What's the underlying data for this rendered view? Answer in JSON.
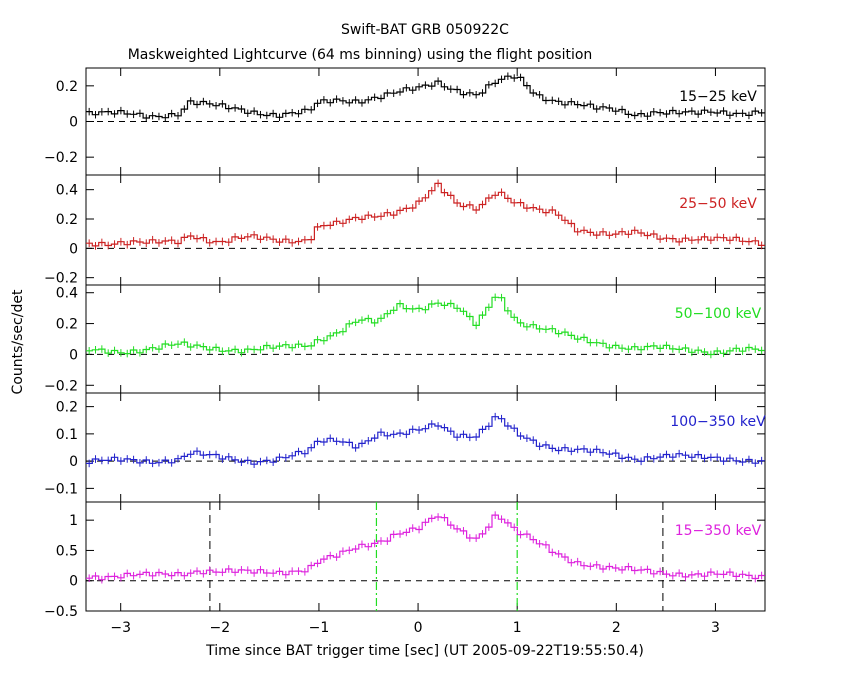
{
  "chart_data": {
    "type": "line",
    "title": "Swift-BAT GRB 050922C",
    "subtitle": "Maskweighted Lightcurve (64 ms binning) using the flight position",
    "xlabel": "Time since BAT trigger time [sec] (UT 2005-09-22T19:55:50.4)",
    "ylabel": "Counts/sec/det",
    "xlim": [
      -3.35,
      3.5
    ],
    "x_ticks": [
      -3,
      -2,
      -1,
      0,
      1,
      2,
      3
    ],
    "grid": false,
    "markers": {
      "black_dashed": [
        -2.1,
        2.47
      ],
      "green_dashdot": [
        -0.42,
        1.0
      ]
    },
    "panels": [
      {
        "name": "15-25 keV",
        "label": "15−25 keV",
        "color": "#000000",
        "ylim": [
          -0.3,
          0.3
        ],
        "y_ticks": [
          -0.2,
          0,
          0.2
        ],
        "y_tick_labels": [
          "−0.2",
          "0",
          "0.2"
        ],
        "points": [
          [
            -3.3,
            0.05
          ],
          [
            -3.0,
            0.04
          ],
          [
            -2.7,
            0.03
          ],
          [
            -2.4,
            0.05
          ],
          [
            -2.3,
            0.11
          ],
          [
            -2.0,
            0.08
          ],
          [
            -1.7,
            0.06
          ],
          [
            -1.4,
            0.04
          ],
          [
            -1.1,
            0.05
          ],
          [
            -1.0,
            0.1
          ],
          [
            -0.8,
            0.12
          ],
          [
            -0.6,
            0.12
          ],
          [
            -0.4,
            0.14
          ],
          [
            -0.2,
            0.16
          ],
          [
            0.0,
            0.18
          ],
          [
            0.2,
            0.22
          ],
          [
            0.4,
            0.18
          ],
          [
            0.6,
            0.15
          ],
          [
            0.8,
            0.22
          ],
          [
            1.0,
            0.25
          ],
          [
            1.2,
            0.15
          ],
          [
            1.4,
            0.12
          ],
          [
            1.6,
            0.1
          ],
          [
            1.8,
            0.07
          ],
          [
            2.0,
            0.06
          ],
          [
            2.2,
            0.04
          ],
          [
            2.4,
            0.06
          ],
          [
            2.6,
            0.05
          ],
          [
            2.8,
            0.04
          ],
          [
            3.0,
            0.05
          ],
          [
            3.2,
            0.05
          ],
          [
            3.5,
            0.06
          ]
        ]
      },
      {
        "name": "25-50 keV",
        "label": "25−50 keV",
        "color": "#cc2222",
        "ylim": [
          -0.25,
          0.5
        ],
        "y_ticks": [
          -0.2,
          0,
          0.2,
          0.4
        ],
        "y_tick_labels": [
          "−0.2",
          "0",
          "0.2",
          "0.4"
        ],
        "points": [
          [
            -3.3,
            0.04
          ],
          [
            -3.0,
            0.04
          ],
          [
            -2.7,
            0.03
          ],
          [
            -2.4,
            0.05
          ],
          [
            -2.3,
            0.1
          ],
          [
            -2.0,
            0.04
          ],
          [
            -1.7,
            0.07
          ],
          [
            -1.4,
            0.06
          ],
          [
            -1.1,
            0.06
          ],
          [
            -1.0,
            0.15
          ],
          [
            -0.8,
            0.16
          ],
          [
            -0.6,
            0.2
          ],
          [
            -0.4,
            0.23
          ],
          [
            -0.2,
            0.26
          ],
          [
            0.0,
            0.3
          ],
          [
            0.2,
            0.42
          ],
          [
            0.4,
            0.3
          ],
          [
            0.6,
            0.28
          ],
          [
            0.8,
            0.4
          ],
          [
            1.0,
            0.3
          ],
          [
            1.2,
            0.25
          ],
          [
            1.4,
            0.24
          ],
          [
            1.6,
            0.14
          ],
          [
            1.8,
            0.11
          ],
          [
            2.0,
            0.09
          ],
          [
            2.2,
            0.1
          ],
          [
            2.4,
            0.08
          ],
          [
            2.6,
            0.07
          ],
          [
            2.8,
            0.07
          ],
          [
            3.0,
            0.06
          ],
          [
            3.2,
            0.05
          ],
          [
            3.5,
            0.04
          ]
        ]
      },
      {
        "name": "50-100 keV",
        "label": "50−100 keV",
        "color": "#22dd22",
        "ylim": [
          -0.25,
          0.45
        ],
        "y_ticks": [
          -0.2,
          0,
          0.2,
          0.4
        ],
        "y_tick_labels": [
          "−0.2",
          "0",
          "0.2",
          "0.4"
        ],
        "points": [
          [
            -3.3,
            0.02
          ],
          [
            -3.0,
            0.02
          ],
          [
            -2.7,
            0.04
          ],
          [
            -2.4,
            0.06
          ],
          [
            -2.3,
            0.05
          ],
          [
            -2.0,
            0.04
          ],
          [
            -1.7,
            0.03
          ],
          [
            -1.4,
            0.04
          ],
          [
            -1.1,
            0.06
          ],
          [
            -1.0,
            0.1
          ],
          [
            -0.8,
            0.15
          ],
          [
            -0.6,
            0.22
          ],
          [
            -0.4,
            0.2
          ],
          [
            -0.2,
            0.32
          ],
          [
            0.0,
            0.3
          ],
          [
            0.2,
            0.34
          ],
          [
            0.4,
            0.3
          ],
          [
            0.6,
            0.18
          ],
          [
            0.8,
            0.4
          ],
          [
            1.0,
            0.22
          ],
          [
            1.2,
            0.18
          ],
          [
            1.4,
            0.14
          ],
          [
            1.6,
            0.1
          ],
          [
            1.8,
            0.08
          ],
          [
            2.0,
            0.06
          ],
          [
            2.2,
            0.04
          ],
          [
            2.4,
            0.04
          ],
          [
            2.6,
            0.03
          ],
          [
            2.8,
            0.03
          ],
          [
            3.0,
            0.02
          ],
          [
            3.2,
            0.03
          ],
          [
            3.5,
            0.02
          ]
        ]
      },
      {
        "name": "100-350 keV",
        "label": "100−350 keV",
        "color": "#2222cc",
        "ylim": [
          -0.15,
          0.25
        ],
        "y_ticks": [
          -0.1,
          0,
          0.1,
          0.2
        ],
        "y_tick_labels": [
          "−0.1",
          "0",
          "0.1",
          "0.2"
        ],
        "points": [
          [
            -3.3,
            0.0
          ],
          [
            -3.0,
            0.0
          ],
          [
            -2.7,
            0.0
          ],
          [
            -2.4,
            0.01
          ],
          [
            -2.3,
            0.03
          ],
          [
            -2.0,
            0.01
          ],
          [
            -1.7,
            0.0
          ],
          [
            -1.4,
            0.01
          ],
          [
            -1.1,
            0.03
          ],
          [
            -1.0,
            0.07
          ],
          [
            -0.8,
            0.08
          ],
          [
            -0.6,
            0.06
          ],
          [
            -0.4,
            0.1
          ],
          [
            -0.2,
            0.09
          ],
          [
            0.0,
            0.11
          ],
          [
            0.2,
            0.14
          ],
          [
            0.4,
            0.1
          ],
          [
            0.6,
            0.09
          ],
          [
            0.8,
            0.16
          ],
          [
            1.0,
            0.1
          ],
          [
            1.2,
            0.07
          ],
          [
            1.4,
            0.05
          ],
          [
            1.6,
            0.04
          ],
          [
            1.8,
            0.03
          ],
          [
            2.0,
            0.02
          ],
          [
            2.2,
            0.01
          ],
          [
            2.4,
            0.02
          ],
          [
            2.6,
            0.02
          ],
          [
            2.8,
            0.01
          ],
          [
            3.0,
            0.01
          ],
          [
            3.2,
            0.01
          ],
          [
            3.5,
            0.0
          ]
        ]
      },
      {
        "name": "15-350 keV",
        "label": "15−350 keV",
        "color": "#dd22dd",
        "ylim": [
          -0.5,
          1.3
        ],
        "y_ticks": [
          -0.5,
          0,
          0.5,
          1
        ],
        "y_tick_labels": [
          "−0.5",
          "0",
          "0.5",
          "1"
        ],
        "points": [
          [
            -3.3,
            0.08
          ],
          [
            -3.0,
            0.08
          ],
          [
            -2.7,
            0.08
          ],
          [
            -2.4,
            0.12
          ],
          [
            -2.2,
            0.18
          ],
          [
            -2.0,
            0.15
          ],
          [
            -1.7,
            0.13
          ],
          [
            -1.4,
            0.15
          ],
          [
            -1.1,
            0.2
          ],
          [
            -1.0,
            0.32
          ],
          [
            -0.8,
            0.4
          ],
          [
            -0.6,
            0.55
          ],
          [
            -0.4,
            0.65
          ],
          [
            -0.2,
            0.8
          ],
          [
            0.0,
            0.85
          ],
          [
            0.2,
            1.05
          ],
          [
            0.4,
            0.85
          ],
          [
            0.6,
            0.7
          ],
          [
            0.8,
            1.12
          ],
          [
            1.0,
            0.8
          ],
          [
            1.2,
            0.62
          ],
          [
            1.4,
            0.45
          ],
          [
            1.6,
            0.32
          ],
          [
            1.8,
            0.25
          ],
          [
            2.0,
            0.18
          ],
          [
            2.2,
            0.16
          ],
          [
            2.4,
            0.15
          ],
          [
            2.6,
            0.13
          ],
          [
            2.8,
            0.1
          ],
          [
            3.0,
            0.09
          ],
          [
            3.2,
            0.08
          ],
          [
            3.5,
            0.08
          ]
        ]
      }
    ]
  }
}
